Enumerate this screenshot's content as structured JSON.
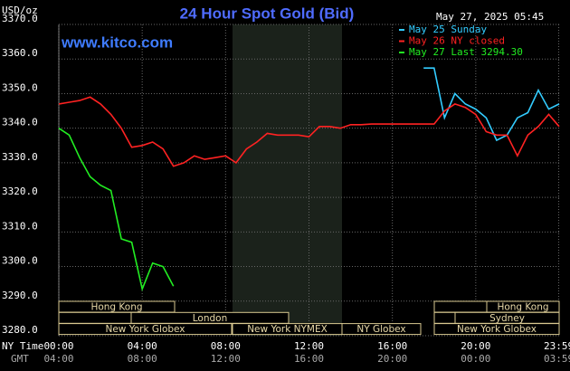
{
  "chart_data": {
    "type": "line",
    "title": "24 Hour Spot Gold (Bid)",
    "y_label": "USD/oz",
    "timestamp": "May 27, 2025 05:45",
    "watermark": "www.kitco.com",
    "x_row_labels": [
      "NY Time",
      "GMT"
    ],
    "x": [
      0,
      0.5,
      1,
      1.5,
      2,
      2.5,
      3,
      3.5,
      4,
      4.5,
      5,
      5.5,
      6,
      6.5,
      7,
      7.5,
      8,
      8.5,
      9,
      9.5,
      10,
      10.5,
      11,
      11.5,
      12,
      12.5,
      13,
      13.5,
      14,
      14.5,
      15,
      15.5,
      16,
      16.5,
      17,
      17.5,
      18,
      18.5,
      19,
      19.5,
      20,
      20.5,
      21,
      21.5,
      22,
      22.5,
      23,
      23.5,
      24
    ],
    "xlim": [
      0,
      24
    ],
    "xticks": [
      {
        "value": 0,
        "label": "00:00"
      },
      {
        "value": 4,
        "label": "04:00"
      },
      {
        "value": 8,
        "label": "08:00"
      },
      {
        "value": 12,
        "label": "12:00"
      },
      {
        "value": 16,
        "label": "16:00"
      },
      {
        "value": 20,
        "label": "20:00"
      },
      {
        "value": 23.98,
        "label": "23:59"
      }
    ],
    "gmt_labels": [
      "04:00",
      "08:00",
      "12:00",
      "16:00",
      "20:00",
      "00:00",
      "03:59"
    ],
    "ylim": [
      3280,
      3370
    ],
    "yticks": [
      {
        "value": 3280,
        "label": "3280.0"
      },
      {
        "value": 3290,
        "label": "3290.0"
      },
      {
        "value": 3300,
        "label": "3300.0"
      },
      {
        "value": 3310,
        "label": "3310.0"
      },
      {
        "value": 3320,
        "label": "3320.0"
      },
      {
        "value": 3330,
        "label": "3330.0"
      },
      {
        "value": 3340,
        "label": "3340.0"
      },
      {
        "value": 3350,
        "label": "3350.0"
      },
      {
        "value": 3360,
        "label": "3360.0"
      },
      {
        "value": 3370,
        "label": "3370.0"
      }
    ],
    "grid": true,
    "series": [
      {
        "name": "May 25 Sunday",
        "color": "#33ccff",
        "values": [
          null,
          null,
          null,
          null,
          null,
          null,
          null,
          null,
          null,
          null,
          null,
          null,
          null,
          null,
          null,
          null,
          null,
          null,
          null,
          null,
          null,
          null,
          null,
          null,
          null,
          null,
          null,
          null,
          null,
          null,
          null,
          null,
          null,
          null,
          null,
          3357.4,
          3357.4,
          3343,
          3350,
          3347,
          3345.5,
          3343,
          3336.5,
          3338,
          3343,
          3344.5,
          3351,
          3345.5,
          3347
        ]
      },
      {
        "name": "May 26 NY closed",
        "color": "#ff2222",
        "values": [
          3347,
          3347.5,
          3348,
          3349,
          3347,
          3344,
          3340,
          3334.5,
          3335,
          3336,
          3334,
          3329,
          3330,
          3332,
          3331,
          3331.5,
          3332,
          3330,
          3334,
          3336,
          3338.5,
          3338,
          3338,
          3338,
          3337.5,
          3340.5,
          3340.5,
          3340,
          3341,
          3341,
          3341.2,
          3341.2,
          3341.2,
          3341.2,
          3341.2,
          3341.2,
          3341.2,
          3345,
          3347,
          3346,
          3344,
          3339,
          3338,
          3338,
          3332,
          3338,
          3340.5,
          3344,
          3340.5
        ]
      },
      {
        "name": "May 27 Last 3294.30",
        "color": "#22ee22",
        "values": [
          3340,
          3338,
          3331.5,
          3326,
          3323.5,
          3322,
          3308,
          3307,
          3293.5,
          3301,
          3300,
          3294.3,
          null,
          null,
          null,
          null,
          null,
          null,
          null,
          null,
          null,
          null,
          null,
          null,
          null,
          null,
          null,
          null,
          null,
          null,
          null,
          null,
          null,
          null,
          null,
          null,
          null,
          null,
          null,
          null,
          null,
          null,
          null,
          null,
          null,
          null,
          null,
          null,
          null
        ]
      }
    ],
    "sessions": [
      "Hong Kong",
      "London",
      "New York Globex",
      "New York NYMEX",
      "NY Globex",
      "Hong Kong",
      "Sydney",
      "New York Globex"
    ]
  }
}
